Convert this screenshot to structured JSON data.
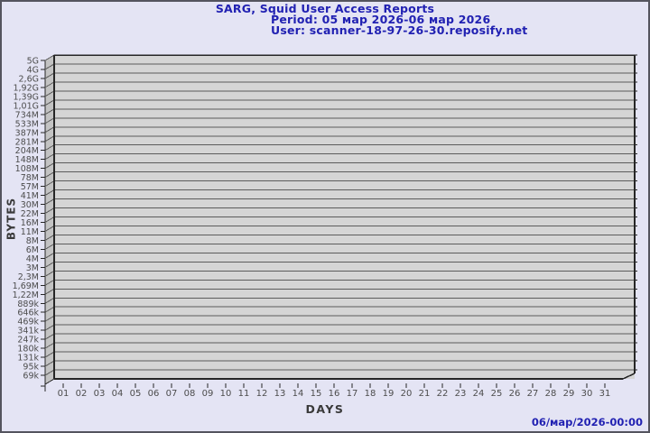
{
  "chart_data": {
    "type": "bar",
    "title": "SARG, Squid User Access Reports",
    "subtitle_period": "Period: 05 мар 2026-06 мар 2026",
    "subtitle_user": "User: scanner-18-97-26-30.reposify.net",
    "xlabel": "DAYS",
    "ylabel": "BYTES",
    "timestamp": "06/мар/2026-00:00",
    "y_scale": "log",
    "grid": true,
    "style": "3d",
    "x_tick_labels": [
      "01",
      "02",
      "03",
      "04",
      "05",
      "06",
      "07",
      "08",
      "09",
      "10",
      "11",
      "12",
      "13",
      "14",
      "15",
      "16",
      "17",
      "18",
      "19",
      "20",
      "21",
      "22",
      "23",
      "24",
      "25",
      "26",
      "27",
      "28",
      "29",
      "30",
      "31"
    ],
    "y_tick_labels": [
      "5G",
      "4G",
      "2,6G",
      "1,92G",
      "1,39G",
      "1,01G",
      "734M",
      "533M",
      "387M",
      "281M",
      "204M",
      "148M",
      "108M",
      "78M",
      "57M",
      "41M",
      "30M",
      "22M",
      "16M",
      "11M",
      "8M",
      "6M",
      "4M",
      "3M",
      "2,3M",
      "1,69M",
      "1,22M",
      "889k",
      "646k",
      "469k",
      "341k",
      "247k",
      "180k",
      "131k",
      "95k",
      "69k"
    ],
    "series": []
  },
  "colors": {
    "background": "#e4e4f4",
    "border": "#54545e",
    "title_text": "#2121b2",
    "axis_title": "#3a3a3a",
    "tick_label": "#4c4c4c",
    "plot_fill": "#d5d5d5",
    "wall_fill": "#c3c3c3",
    "grid_line": "#5c5c5c",
    "edge_line": "#262626"
  }
}
